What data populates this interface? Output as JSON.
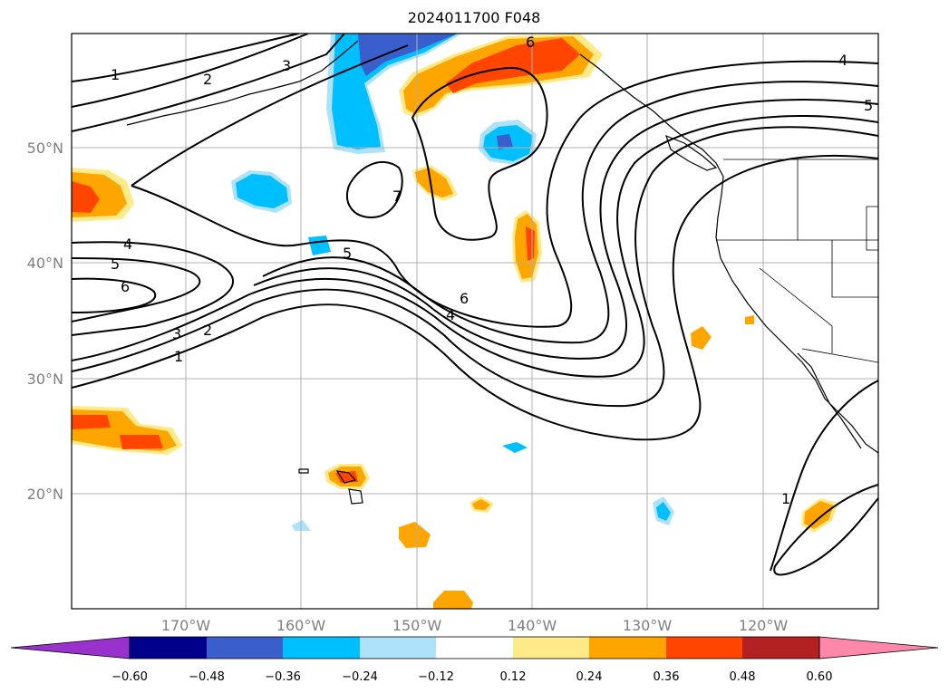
{
  "title": "2024011700 F048",
  "latitude_labels": [
    "50°N",
    "40°N",
    "30°N",
    "20°N"
  ],
  "longitude_labels": [
    "170°W",
    "160°W",
    "150°W",
    "140°W",
    "130°W",
    "120°W"
  ],
  "contour_labels": [
    "1",
    "2",
    "3",
    "4",
    "5",
    "6",
    "7"
  ],
  "colorbar": {
    "ticks": [
      "−0.60",
      "−0.48",
      "−0.36",
      "−0.24",
      "−0.12",
      "0.12",
      "0.24",
      "0.36",
      "0.48",
      "0.60"
    ],
    "colors": [
      "#9932cc",
      "#00008b",
      "#3a5fcd",
      "#00bfff",
      "#ade2fa",
      "#ffffff",
      "#ffea8a",
      "#ffa500",
      "#ff4500",
      "#b22222",
      "#ff88aa"
    ]
  },
  "colors": {
    "orange": "#ffa500",
    "red_orange": "#ff4500",
    "yellow": "#ffea8a",
    "blue": "#00bfff",
    "light_blue": "#ade2fa",
    "dark_blue": "#3a5fcd"
  }
}
